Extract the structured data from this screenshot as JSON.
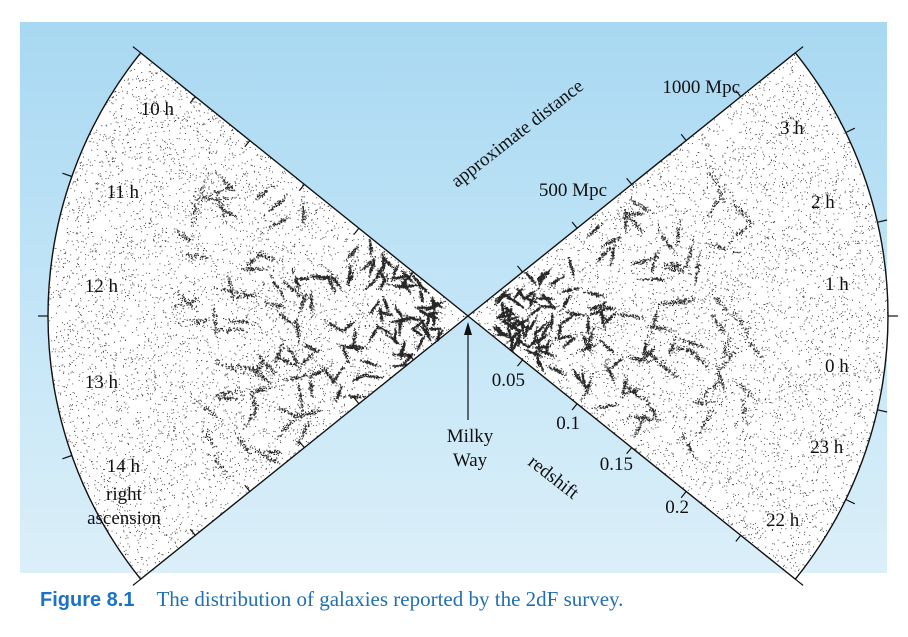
{
  "figure": {
    "label": "Figure 8.1",
    "caption": "The distribution of galaxies reported by the 2dF survey."
  },
  "right_ascension_left": [
    "10 h",
    "11 h",
    "12 h",
    "13 h",
    "14 h"
  ],
  "right_ascension_right": [
    "3 h",
    "2 h",
    "1 h",
    "0 h",
    "23 h",
    "22 h"
  ],
  "ra_axis_label": [
    "right",
    "ascension"
  ],
  "distance_axis_label": "approximate distance",
  "distance_ticks": [
    "500 Mpc",
    "1000 Mpc"
  ],
  "redshift_axis_label": "redshift",
  "redshift_ticks": [
    "0.05",
    "0.1",
    "0.15",
    "0.2"
  ],
  "observer_label": [
    "Milky",
    "Way"
  ],
  "colors": {
    "background_top": "#a8d8f2",
    "background_bottom": "#dbeff9",
    "wedge_fill": "#ffffff",
    "galaxy_points": "#000000",
    "caption_label": "#1a73c5",
    "caption_text": "#1f6fb2"
  }
}
